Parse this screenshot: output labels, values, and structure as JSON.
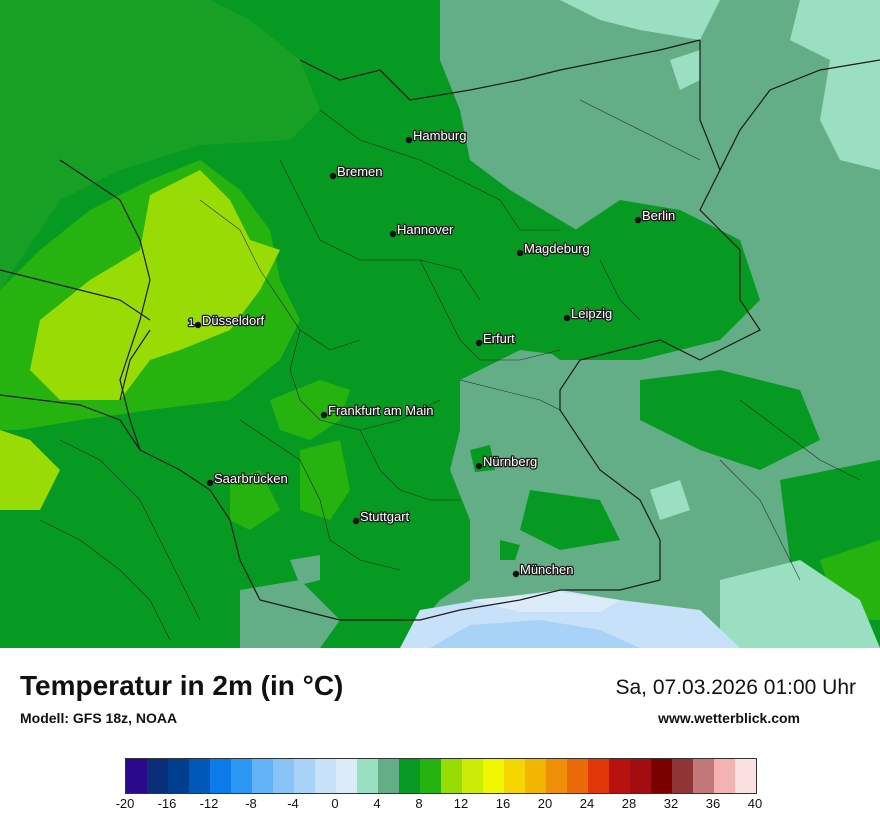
{
  "title": "Temperatur in 2m (in °C)",
  "model": "Modell: GFS 18z, NOAA",
  "datetime": "Sa, 07.03.2026 01:00 Uhr",
  "website": "www.wetterblick.com",
  "cities": [
    {
      "name": "Hamburg"
    },
    {
      "name": "Bremen"
    },
    {
      "name": "Berlin"
    },
    {
      "name": "Hannover"
    },
    {
      "name": "Magdeburg"
    },
    {
      "name": "Düsseldorf"
    },
    {
      "name": "Leipzig"
    },
    {
      "name": "Erfurt"
    },
    {
      "name": "Frankfurt am Main"
    },
    {
      "name": "Nürnberg"
    },
    {
      "name": "Saarbrücken"
    },
    {
      "name": "Stuttgart"
    },
    {
      "name": "München"
    }
  ],
  "stray_label": "1",
  "scale": {
    "ticks": [
      "-20",
      "-16",
      "-12",
      "-8",
      "-4",
      "0",
      "4",
      "8",
      "12",
      "16",
      "20",
      "24",
      "28",
      "32",
      "36",
      "40"
    ],
    "colors": [
      "#2a0a8a",
      "#0a2e7a",
      "#003f8f",
      "#0058b8",
      "#0a7be8",
      "#2c97f5",
      "#62b2f8",
      "#88c2f7",
      "#a8d2f8",
      "#c6e1f8",
      "#dcebf8",
      "#9bdfc2",
      "#63ae86",
      "#079a22",
      "#26b20f",
      "#99dc05",
      "#cdec05",
      "#f0f500",
      "#f5d600",
      "#f2b600",
      "#ef8f07",
      "#ea6a0a",
      "#e03808",
      "#b8120f",
      "#a30d10",
      "#7b0000",
      "#8f3535",
      "#c27878",
      "#f5b2b2",
      "#fbe0e0"
    ]
  }
}
